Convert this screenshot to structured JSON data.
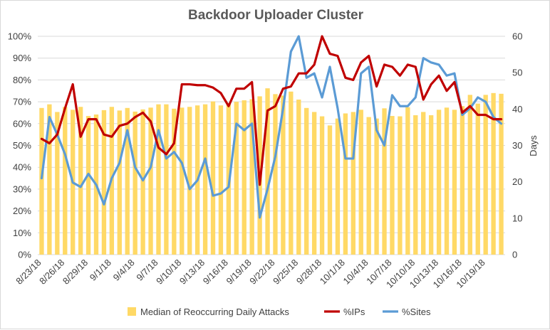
{
  "chart_data": {
    "type": "bar+line",
    "title": "Backdoor Uploader Cluster",
    "y_left_ticks": [
      "0%",
      "10%",
      "20%",
      "30%",
      "40%",
      "50%",
      "60%",
      "70%",
      "80%",
      "90%",
      "100%"
    ],
    "y_left_lim": [
      0,
      100
    ],
    "y_right_ticks": [
      "0",
      "10",
      "20",
      "30",
      "40",
      "50",
      "60"
    ],
    "y_right_lim": [
      0,
      60
    ],
    "y_right_label": "Days",
    "x_tick_labels": [
      "8/23/18",
      "8/26/18",
      "8/29/18",
      "9/1/18",
      "9/4/18",
      "9/7/18",
      "9/10/18",
      "9/13/18",
      "9/16/18",
      "9/19/18",
      "9/22/18",
      "9/25/18",
      "9/28/18",
      "10/1/18",
      "10/4/18",
      "10/7/18",
      "10/10/18",
      "10/13/18",
      "10/16/18",
      "10/19/18"
    ],
    "x_tick_every": 3,
    "n_points": 60,
    "colors": {
      "bars": "#ffd966",
      "ips": "#c00000",
      "sites": "#5b9bd5",
      "grid": "#d9d9d9",
      "text": "#404040",
      "title": "#595959"
    },
    "legend_position": "bottom",
    "series": [
      {
        "name": "Median of Reoccurring Daily Attacks",
        "kind": "bar",
        "axis": "right",
        "values": [
          40.3,
          41.3,
          39.2,
          40.6,
          39.8,
          40.6,
          38.1,
          38.5,
          39.7,
          40.6,
          39.6,
          40.3,
          39.3,
          39.9,
          40.4,
          41.3,
          41.3,
          40.1,
          40.4,
          40.6,
          41.0,
          41.3,
          42.1,
          41.0,
          41.6,
          42.0,
          42.4,
          42.7,
          43.5,
          45.7,
          44.1,
          43.7,
          44.8,
          42.6,
          40.3,
          39.2,
          38.0,
          35.5,
          37.4,
          38.8,
          39.2,
          39.8,
          37.8,
          37.4,
          40.2,
          38.1,
          38.0,
          40.5,
          38.3,
          39.2,
          38.3,
          39.8,
          40.4,
          39.8,
          40.8,
          43.9,
          41.5,
          43.9,
          44.4,
          44.2
        ]
      },
      {
        "name": "%IPs",
        "kind": "line",
        "axis": "left",
        "values": [
          0.53,
          0.51,
          0.55,
          0.67,
          0.78,
          0.54,
          0.62,
          0.62,
          0.55,
          0.54,
          0.59,
          0.6,
          0.63,
          0.65,
          0.61,
          0.49,
          0.46,
          0.51,
          0.78,
          0.78,
          0.776,
          0.776,
          0.765,
          0.74,
          0.68,
          0.76,
          0.76,
          0.79,
          0.32,
          0.66,
          0.68,
          0.76,
          0.77,
          0.83,
          0.83,
          0.87,
          1.0,
          0.92,
          0.91,
          0.81,
          0.8,
          0.88,
          0.91,
          0.77,
          0.87,
          0.86,
          0.82,
          0.87,
          0.86,
          0.71,
          0.78,
          0.82,
          0.75,
          0.79,
          0.65,
          0.68,
          0.64,
          0.64,
          0.62,
          0.62
        ]
      },
      {
        "name": "%Sites",
        "kind": "line",
        "axis": "left",
        "values": [
          0.35,
          0.63,
          0.55,
          0.46,
          0.33,
          0.31,
          0.37,
          0.32,
          0.23,
          0.35,
          0.42,
          0.57,
          0.4,
          0.34,
          0.4,
          0.57,
          0.44,
          0.47,
          0.42,
          0.3,
          0.34,
          0.44,
          0.27,
          0.28,
          0.31,
          0.6,
          0.57,
          0.6,
          0.17,
          0.3,
          0.45,
          0.67,
          0.93,
          1.0,
          0.81,
          0.83,
          0.72,
          0.86,
          0.67,
          0.44,
          0.44,
          0.83,
          0.86,
          0.57,
          0.5,
          0.73,
          0.68,
          0.68,
          0.72,
          0.9,
          0.88,
          0.87,
          0.82,
          0.83,
          0.64,
          0.67,
          0.72,
          0.7,
          0.63,
          0.6
        ]
      }
    ]
  }
}
